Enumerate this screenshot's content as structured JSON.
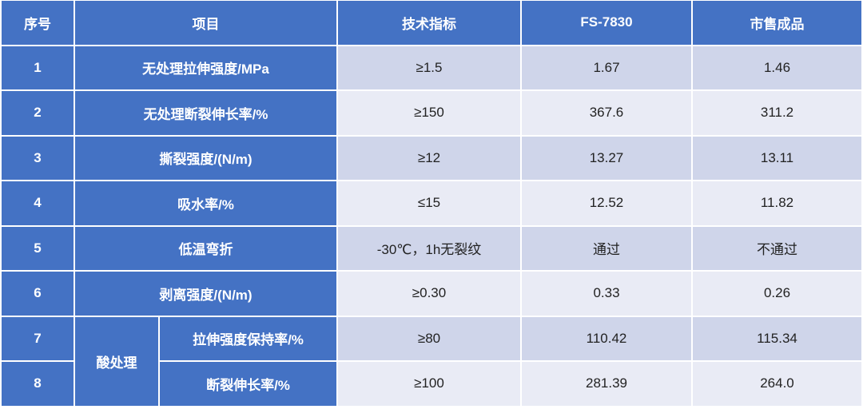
{
  "table": {
    "header": [
      "序号",
      "项目",
      "技术指标",
      "FS-7830",
      "市售成品"
    ],
    "rows": [
      {
        "no": "1",
        "item": "无处理拉伸强度/MPa",
        "spec": "≥1.5",
        "fs": "1.67",
        "market": "1.46"
      },
      {
        "no": "2",
        "item": "无处理断裂伸长率/%",
        "spec": "≥150",
        "fs": "367.6",
        "market": "311.2"
      },
      {
        "no": "3",
        "item": "撕裂强度/(N/m)",
        "spec": "≥12",
        "fs": "13.27",
        "market": "13.11"
      },
      {
        "no": "4",
        "item": "吸水率/%",
        "spec": "≤15",
        "fs": "12.52",
        "market": "11.82"
      },
      {
        "no": "5",
        "item": "低温弯折",
        "spec": "-30℃，1h无裂纹",
        "fs": "通过",
        "market": "不通过"
      },
      {
        "no": "6",
        "item": "剥离强度/(N/m)",
        "spec": "≥0.30",
        "fs": "0.33",
        "market": "0.26"
      },
      {
        "no": "7",
        "item": "拉伸强度保持率/%",
        "spec": "≥80",
        "fs": "110.42",
        "market": "115.34"
      },
      {
        "no": "8",
        "item": "断裂伸长率/%",
        "spec": "≥100",
        "fs": "281.39",
        "market": "264.0"
      }
    ],
    "group": "酸处理"
  }
}
